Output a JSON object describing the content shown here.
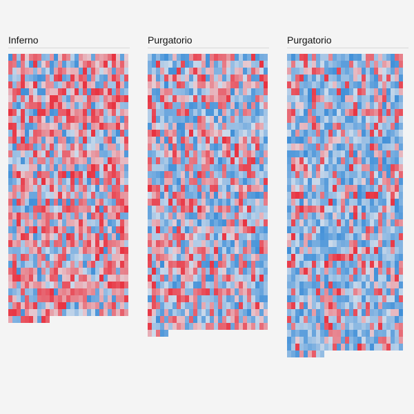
{
  "chart_data": [
    {
      "type": "heatmap",
      "title": "Inferno",
      "columns": 29,
      "rows": 39,
      "last_row_cells": 10,
      "red_bias": 0.62,
      "colors": {
        "hot": "#e8313f",
        "cold": "#3f8fd8",
        "neutral": "#e6e8ee"
      }
    },
    {
      "type": "heatmap",
      "title": "Purgatorio",
      "columns": 29,
      "rows": 41,
      "last_row_cells": 5,
      "red_bias": 0.45,
      "colors": {
        "hot": "#e8313f",
        "cold": "#3f8fd8",
        "neutral": "#e6e8ee"
      }
    },
    {
      "type": "heatmap",
      "title": "Purgatorio",
      "columns": 28,
      "rows": 44,
      "last_row_cells": 9,
      "red_bias": 0.3,
      "colors": {
        "hot": "#e8313f",
        "cold": "#3f8fd8",
        "neutral": "#e6e8ee"
      }
    }
  ]
}
